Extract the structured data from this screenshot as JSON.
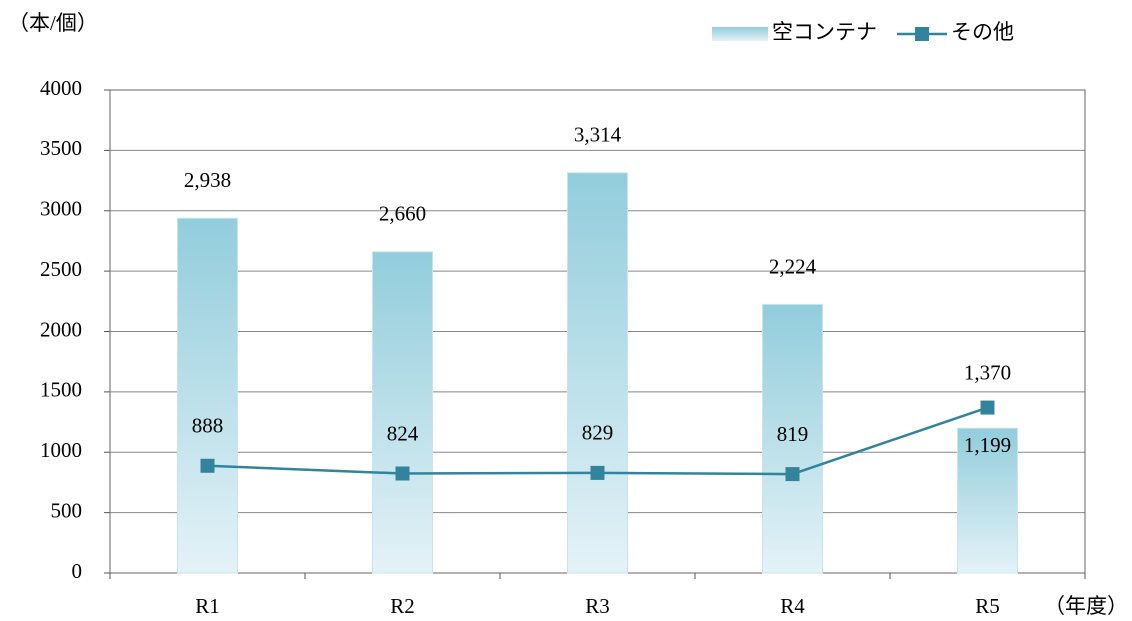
{
  "chart_data": {
    "type": "combo",
    "y_axis_label": "（本/個）",
    "x_axis_label": "（年度）",
    "categories": [
      "R1",
      "R2",
      "R3",
      "R4",
      "R5"
    ],
    "series": [
      {
        "name": "空コンテナ",
        "type": "bar",
        "color": "#92cddc",
        "values": [
          2938,
          2660,
          3314,
          2224,
          1199
        ],
        "value_labels": [
          "2,938",
          "2,660",
          "3,314",
          "2,224",
          "1,199"
        ]
      },
      {
        "name": "その他",
        "type": "line",
        "color": "#31849b",
        "values": [
          888,
          824,
          829,
          819,
          1370
        ],
        "value_labels": [
          "888",
          "824",
          "829",
          "819",
          "1,370"
        ]
      }
    ],
    "ylim": [
      0,
      4000
    ],
    "yticks": [
      0,
      500,
      1000,
      1500,
      2000,
      2500,
      3000,
      3500,
      4000
    ],
    "grid": true,
    "legend": "top-right"
  }
}
